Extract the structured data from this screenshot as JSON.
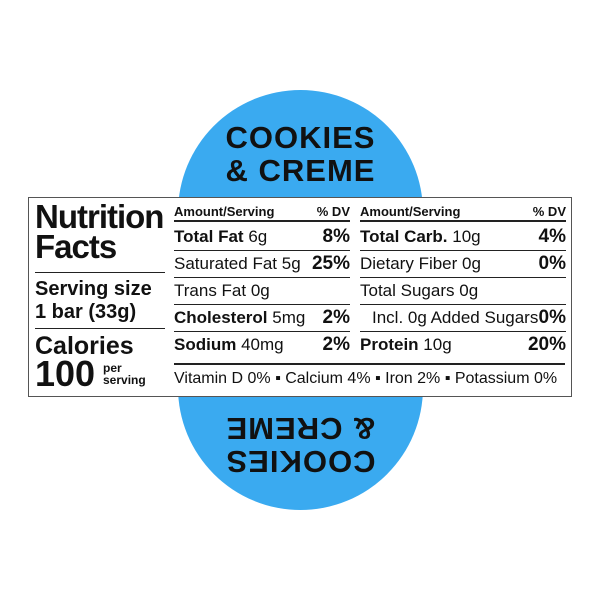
{
  "flavor": {
    "line1": "COOKIES",
    "line2": "& CREME"
  },
  "colors": {
    "accent": "#3aaaf0"
  },
  "title": {
    "line1": "Nutrition",
    "line2": "Facts"
  },
  "serving": {
    "label": "Serving size",
    "value": "1 bar (33g)"
  },
  "calories": {
    "label": "Calories",
    "value": "100",
    "per": "per",
    "serving": "serving"
  },
  "left": {
    "header": {
      "amount": "Amount/Serving",
      "dv": "% DV"
    },
    "rows": [
      {
        "name": "Total Fat",
        "amount": "6g",
        "dv": "8%",
        "bold": true
      },
      {
        "name": "Saturated Fat",
        "amount": "5g",
        "dv": "25%",
        "bold": false
      },
      {
        "name": "Trans Fat",
        "amount": "0g",
        "dv": "",
        "bold": false
      },
      {
        "name": "Cholesterol",
        "amount": "5mg",
        "dv": "2%",
        "bold": true
      },
      {
        "name": "Sodium",
        "amount": "40mg",
        "dv": "2%",
        "bold": true
      }
    ]
  },
  "right": {
    "header": {
      "amount": "Amount/Serving",
      "dv": "% DV"
    },
    "rows": [
      {
        "name": "Total Carb.",
        "amount": "10g",
        "dv": "4%",
        "bold": true
      },
      {
        "name": "Dietary Fiber",
        "amount": "0g",
        "dv": "0%",
        "bold": false
      },
      {
        "name": "Total Sugars",
        "amount": "0g",
        "dv": "",
        "bold": false
      },
      {
        "name": "Incl. 0g Added Sugars",
        "amount": "",
        "dv": "0%",
        "bold": false
      },
      {
        "name": "Protein",
        "amount": "10g",
        "dv": "20%",
        "bold": true
      }
    ]
  },
  "vitamins": "Vitamin D 0% ▪ Calcium 4% ▪ Iron 2% ▪ Potassium 0%"
}
